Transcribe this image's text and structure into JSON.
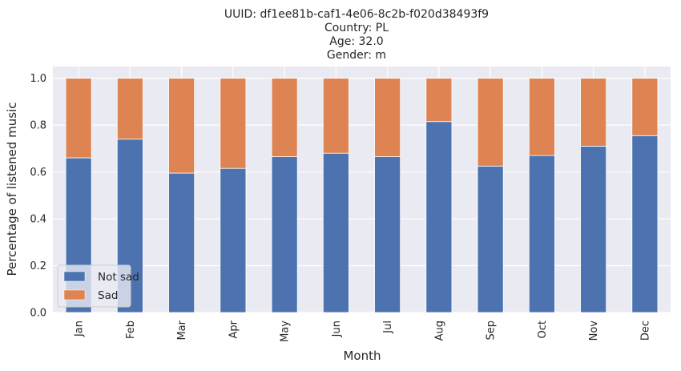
{
  "chart_data": {
    "type": "bar",
    "stacked": true,
    "title_lines": [
      "UUID: df1ee81b-caf1-4e06-8c2b-f020d38493f9",
      "Country: PL",
      "Age: 32.0",
      "Gender: m"
    ],
    "xlabel": "Month",
    "ylabel": "Percentage of listened music",
    "categories": [
      "Jan",
      "Feb",
      "Mar",
      "Apr",
      "May",
      "Jun",
      "Jul",
      "Aug",
      "Sep",
      "Oct",
      "Nov",
      "Dec"
    ],
    "series": [
      {
        "name": "Not sad",
        "color": "#4c72b0",
        "values": [
          0.66,
          0.74,
          0.595,
          0.615,
          0.665,
          0.68,
          0.665,
          0.815,
          0.625,
          0.67,
          0.71,
          0.755
        ]
      },
      {
        "name": "Sad",
        "color": "#dd8452",
        "values": [
          0.34,
          0.26,
          0.405,
          0.385,
          0.335,
          0.32,
          0.335,
          0.185,
          0.375,
          0.33,
          0.29,
          0.245
        ]
      }
    ],
    "ylim": [
      0,
      1.05
    ],
    "yticks": [
      "0.0",
      "0.2",
      "0.4",
      "0.6",
      "0.8",
      "1.0"
    ],
    "grid": true,
    "legend_position": "lower-left",
    "background_color": "#eaeaf2",
    "grid_color": "#ffffff"
  }
}
